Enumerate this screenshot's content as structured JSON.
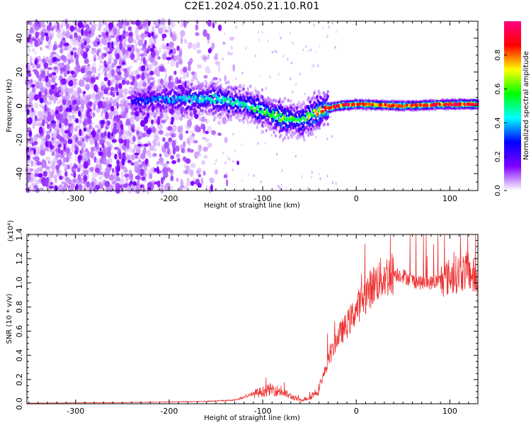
{
  "title": "C2E1.2024.050.21.10.R01",
  "chart_data": [
    {
      "type": "heatmap",
      "xlabel": "Height of straight line (km)",
      "ylabel": "Frequency (Hz)",
      "xlim": [
        -352,
        130
      ],
      "ylim": [
        -50,
        50
      ],
      "x_ticks": [
        -300,
        -200,
        -100,
        0,
        100
      ],
      "y_ticks": [
        -40,
        -20,
        0,
        20,
        40
      ],
      "colorbar": {
        "label": "Normalized spectral amplitude",
        "range": [
          0.0,
          1.0
        ],
        "ticks": [
          0.0,
          0.2,
          0.4,
          0.6,
          0.8
        ],
        "tick_labels": [
          "0.0",
          "0.2",
          "0.4",
          "0.6",
          "0.8"
        ],
        "colormap": [
          "#ffffff",
          "#8000ff",
          "#0000ff",
          "#00ffff",
          "#00ff00",
          "#ffff00",
          "#ff0000",
          "#ff0080"
        ]
      },
      "ridge_frequency_hz": {
        "x": [
          -240,
          -200,
          -150,
          -120,
          -100,
          -80,
          -60,
          -40,
          -20,
          0,
          50,
          100,
          130
        ],
        "y": [
          3,
          4,
          4,
          1,
          -3,
          -7,
          -9,
          -3,
          0,
          1,
          0,
          1,
          1
        ]
      },
      "ridge_peak_amplitude": {
        "x": [
          -240,
          -200,
          -150,
          -120,
          -100,
          -80,
          -60,
          -40,
          -20,
          0,
          50,
          100,
          130
        ],
        "y": [
          0.25,
          0.35,
          0.45,
          0.45,
          0.55,
          0.6,
          0.5,
          0.7,
          0.85,
          0.8,
          0.75,
          0.85,
          0.9
        ]
      }
    },
    {
      "type": "line",
      "xlabel": "Height of straight line (km)",
      "ylabel": "SNR (10 * v/v)",
      "y_multiplier_label": "(x10⁴)",
      "xlim": [
        -352,
        130
      ],
      "ylim": [
        0.0,
        1.4
      ],
      "x_ticks": [
        -300,
        -200,
        -100,
        0,
        100
      ],
      "y_ticks": [
        0.0,
        0.2,
        0.4,
        0.6,
        0.8,
        1.0,
        1.2,
        1.4
      ],
      "y_tick_labels": [
        "0.0",
        "0.2",
        "0.4",
        "0.6",
        "0.8",
        "1.0",
        "1.2",
        "1.4"
      ],
      "color": "#ee3333",
      "series": [
        {
          "x": [
            -352,
            -300,
            -250,
            -200,
            -160,
            -130,
            -110,
            -100,
            -90,
            -80,
            -70,
            -60,
            -50,
            -40,
            -30,
            -20,
            -10,
            0,
            10,
            20,
            30,
            40,
            50,
            60,
            70,
            80,
            90,
            100,
            110,
            120,
            130
          ],
          "y": [
            0.005,
            0.008,
            0.01,
            0.015,
            0.02,
            0.03,
            0.08,
            0.1,
            0.12,
            0.1,
            0.06,
            0.03,
            0.05,
            0.12,
            0.35,
            0.55,
            0.65,
            0.78,
            0.9,
            1.0,
            1.05,
            1.08,
            1.06,
            1.02,
            1.0,
            1.0,
            1.02,
            1.05,
            1.08,
            1.1,
            1.0
          ]
        }
      ]
    }
  ]
}
